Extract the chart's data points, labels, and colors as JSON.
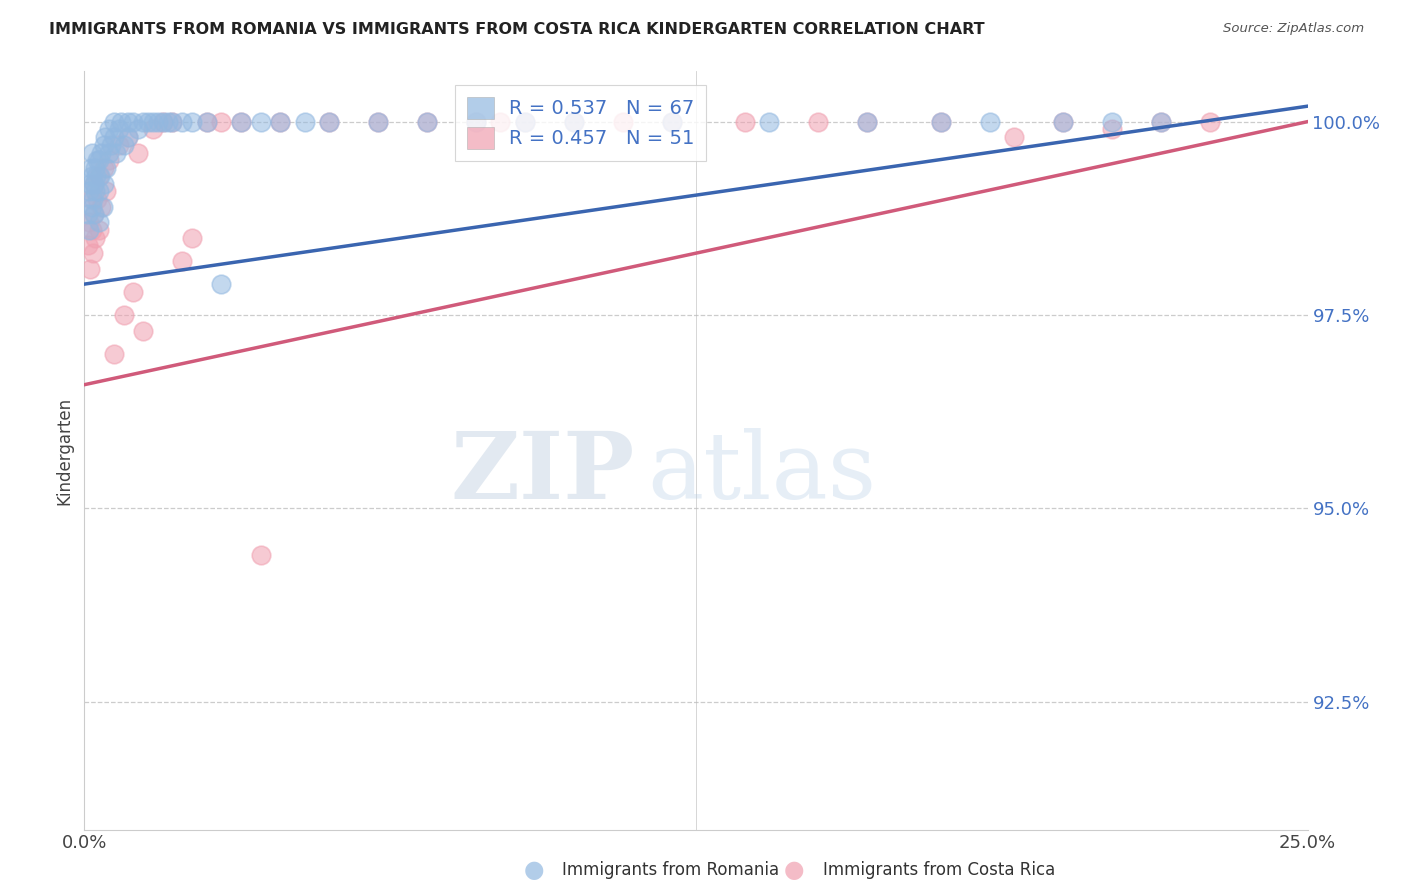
{
  "title": "IMMIGRANTS FROM ROMANIA VS IMMIGRANTS FROM COSTA RICA KINDERGARTEN CORRELATION CHART",
  "source": "Source: ZipAtlas.com",
  "ylabel": "Kindergarten",
  "x_min": 0.0,
  "x_max": 0.25,
  "y_min": 0.9085,
  "y_max": 1.0065,
  "romania_R": 0.537,
  "romania_N": 67,
  "costarica_R": 0.457,
  "costarica_N": 51,
  "romania_color": "#92b8e0",
  "costarica_color": "#f0a0b0",
  "romania_line_color": "#3a65b0",
  "costarica_line_color": "#d05a7a",
  "legend_label_romania": "R = 0.537   N = 67",
  "legend_label_costarica": "R = 0.457   N = 51",
  "bottom_legend_romania": "Immigrants from Romania",
  "bottom_legend_costarica": "Immigrants from Costa Rica",
  "watermark_zip": "ZIP",
  "watermark_atlas": "atlas",
  "y_ticks": [
    0.925,
    0.95,
    0.975,
    1.0
  ],
  "y_tick_labels": [
    "92.5%",
    "95.0%",
    "97.5%",
    "100.0%"
  ],
  "x_ticks": [
    0.0,
    0.05,
    0.1,
    0.15,
    0.2,
    0.25
  ],
  "x_tick_labels": [
    "0.0%",
    "",
    "",
    "",
    "",
    "25.0%"
  ],
  "romania_x": [
    0.0008,
    0.0009,
    0.001,
    0.0012,
    0.0013,
    0.0015,
    0.0015,
    0.0016,
    0.0018,
    0.002,
    0.002,
    0.0022,
    0.0022,
    0.0024,
    0.0026,
    0.003,
    0.003,
    0.003,
    0.0032,
    0.0035,
    0.0038,
    0.004,
    0.004,
    0.0042,
    0.0045,
    0.005,
    0.005,
    0.0055,
    0.006,
    0.006,
    0.0065,
    0.007,
    0.0075,
    0.008,
    0.009,
    0.009,
    0.01,
    0.011,
    0.012,
    0.013,
    0.014,
    0.015,
    0.016,
    0.017,
    0.018,
    0.02,
    0.022,
    0.025,
    0.028,
    0.032,
    0.036,
    0.04,
    0.045,
    0.05,
    0.06,
    0.07,
    0.08,
    0.09,
    0.1,
    0.12,
    0.14,
    0.16,
    0.175,
    0.185,
    0.2,
    0.21,
    0.22
  ],
  "romania_y": [
    0.988,
    0.991,
    0.986,
    0.992,
    0.994,
    0.989,
    0.993,
    0.996,
    0.99,
    0.988,
    0.992,
    0.991,
    0.994,
    0.993,
    0.995,
    0.987,
    0.991,
    0.995,
    0.993,
    0.996,
    0.989,
    0.992,
    0.997,
    0.998,
    0.994,
    0.996,
    0.999,
    0.997,
    0.998,
    1.0,
    0.996,
    0.999,
    1.0,
    0.997,
    1.0,
    0.998,
    1.0,
    0.999,
    1.0,
    1.0,
    1.0,
    1.0,
    1.0,
    1.0,
    1.0,
    1.0,
    1.0,
    1.0,
    0.979,
    1.0,
    1.0,
    1.0,
    1.0,
    1.0,
    1.0,
    1.0,
    1.0,
    1.0,
    1.0,
    1.0,
    1.0,
    1.0,
    1.0,
    1.0,
    1.0,
    1.0,
    1.0
  ],
  "costarica_x": [
    0.0008,
    0.001,
    0.0012,
    0.0014,
    0.0016,
    0.0018,
    0.002,
    0.002,
    0.0022,
    0.0025,
    0.003,
    0.003,
    0.0035,
    0.004,
    0.0045,
    0.005,
    0.006,
    0.007,
    0.008,
    0.009,
    0.01,
    0.011,
    0.012,
    0.014,
    0.016,
    0.018,
    0.02,
    0.022,
    0.025,
    0.028,
    0.032,
    0.036,
    0.04,
    0.05,
    0.06,
    0.07,
    0.08,
    0.085,
    0.09,
    0.1,
    0.11,
    0.12,
    0.135,
    0.15,
    0.16,
    0.175,
    0.19,
    0.2,
    0.21,
    0.22,
    0.23
  ],
  "costarica_y": [
    0.984,
    0.987,
    0.981,
    0.99,
    0.986,
    0.983,
    0.988,
    0.992,
    0.985,
    0.99,
    0.986,
    0.993,
    0.989,
    0.994,
    0.991,
    0.995,
    0.97,
    0.997,
    0.975,
    0.998,
    0.978,
    0.996,
    0.973,
    0.999,
    1.0,
    1.0,
    0.982,
    0.985,
    1.0,
    1.0,
    1.0,
    0.944,
    1.0,
    1.0,
    1.0,
    1.0,
    1.0,
    1.0,
    1.0,
    1.0,
    1.0,
    1.0,
    1.0,
    1.0,
    1.0,
    1.0,
    0.998,
    1.0,
    0.999,
    1.0,
    1.0
  ],
  "romania_trend_x": [
    0.0,
    0.25
  ],
  "romania_trend_y": [
    0.979,
    1.002
  ],
  "costarica_trend_x": [
    0.0,
    0.25
  ],
  "costarica_trend_y": [
    0.966,
    1.0
  ]
}
